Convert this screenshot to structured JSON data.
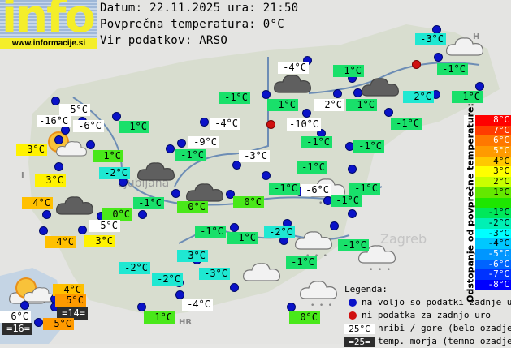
{
  "header": {
    "logo_text": "info",
    "logo_url": "www.informacije.si",
    "date_line": "Datum: 22.11.2025 ura: 21:50",
    "avg_line": "Povprečna temperatura: 0°C",
    "source_line": "Vir podatkov: ARSO"
  },
  "map_labels": {
    "city_ljubljana": "Ljubljana",
    "city_zagreb": "Zagreb",
    "country_hr": "HR",
    "country_h": "H",
    "country_i": "I"
  },
  "stations": [
    {
      "t": "-3°C",
      "s": "cyan"
    },
    {
      "t": "-4°C",
      "s": "white"
    },
    {
      "t": "-1°C",
      "s": "green"
    },
    {
      "t": "-1°C",
      "s": "green"
    },
    {
      "t": "-1°C",
      "s": "green"
    },
    {
      "t": "-1°C",
      "s": "green"
    },
    {
      "t": "-2°C",
      "s": "white"
    },
    {
      "t": "-1°C",
      "s": "green"
    },
    {
      "t": "-2°C",
      "s": "cyan"
    },
    {
      "t": "-1°C",
      "s": "green"
    },
    {
      "t": "-1°C",
      "s": "green"
    },
    {
      "t": "-10°C",
      "s": "white"
    },
    {
      "t": "-5°C",
      "s": "white"
    },
    {
      "t": "-16°C",
      "s": "white"
    },
    {
      "t": "-6°C",
      "s": "white"
    },
    {
      "t": "-1°C",
      "s": "green"
    },
    {
      "t": "-4°C",
      "s": "white"
    },
    {
      "t": "3°C",
      "s": "yellow"
    },
    {
      "t": "1°C",
      "s": "lime"
    },
    {
      "t": "-9°C",
      "s": "white"
    },
    {
      "t": "-1°C",
      "s": "green"
    },
    {
      "t": "-3°C",
      "s": "white"
    },
    {
      "t": "-1°C",
      "s": "green"
    },
    {
      "t": "-1°C",
      "s": "green"
    },
    {
      "t": "-1°C",
      "s": "green"
    },
    {
      "t": "-2°C",
      "s": "cyan"
    },
    {
      "t": "3°C",
      "s": "yellow"
    },
    {
      "t": "-1°C",
      "s": "green"
    },
    {
      "t": "-6°C",
      "s": "white"
    },
    {
      "t": "-1°C",
      "s": "green"
    },
    {
      "t": "4°C",
      "s": "orange"
    },
    {
      "t": "-1°C",
      "s": "green"
    },
    {
      "t": "0°C",
      "s": "lime"
    },
    {
      "t": "0°C",
      "s": "lime"
    },
    {
      "t": "-1°C",
      "s": "green"
    },
    {
      "t": "0°C",
      "s": "lime"
    },
    {
      "t": "-5°C",
      "s": "white"
    },
    {
      "t": "-1°C",
      "s": "green"
    },
    {
      "t": "-1°C",
      "s": "green"
    },
    {
      "t": "-2°C",
      "s": "cyan"
    },
    {
      "t": "-1°C",
      "s": "green"
    },
    {
      "t": "4°C",
      "s": "orange"
    },
    {
      "t": "3°C",
      "s": "yellow"
    },
    {
      "t": "-3°C",
      "s": "cyan"
    },
    {
      "t": "-1°C",
      "s": "green"
    },
    {
      "t": "-2°C",
      "s": "cyan"
    },
    {
      "t": "-2°C",
      "s": "cyan"
    },
    {
      "t": "-3°C",
      "s": "cyan"
    },
    {
      "t": "4°C",
      "s": "orange"
    },
    {
      "t": "5°C",
      "s": "orange2"
    },
    {
      "t": "=14=",
      "s": "dark"
    },
    {
      "t": "6°C",
      "s": "white"
    },
    {
      "t": "=16=",
      "s": "dark"
    },
    {
      "t": "5°C",
      "s": "orange2"
    },
    {
      "t": "-4°C",
      "s": "white"
    },
    {
      "t": "1°C",
      "s": "lime"
    },
    {
      "t": "0°C",
      "s": "lime"
    }
  ],
  "label_colors": {
    "white": "#ffffff",
    "green": "#19e06a",
    "lime": "#49e81a",
    "cyan": "#1fe8d2",
    "yellow": "#fff200",
    "orange": "#ffc000",
    "orange2": "#ff9a00",
    "dark": "#2d2d2d"
  },
  "scale": {
    "title": "Odstopanje od povprečne temperature:",
    "steps": [
      {
        "t": "8°C",
        "c": "#ff0000"
      },
      {
        "t": "7°C",
        "c": "#ff3c00"
      },
      {
        "t": "6°C",
        "c": "#ff7800"
      },
      {
        "t": "5°C",
        "c": "#ff9a00"
      },
      {
        "t": "4°C",
        "c": "#ffc800"
      },
      {
        "t": "3°C",
        "c": "#ffff00"
      },
      {
        "t": "2°C",
        "c": "#c8ff00"
      },
      {
        "t": "1°C",
        "c": "#64e800"
      },
      {
        "t": "",
        "c": "#1ee600"
      },
      {
        "t": "-1°C",
        "c": "#00e85a"
      },
      {
        "t": "-2°C",
        "c": "#00f0b4"
      },
      {
        "t": "-3°C",
        "c": "#00ffff"
      },
      {
        "t": "-4°C",
        "c": "#00c8ff"
      },
      {
        "t": "-5°C",
        "c": "#0096ff"
      },
      {
        "t": "-6°C",
        "c": "#0064ff"
      },
      {
        "t": "-7°C",
        "c": "#0032ff"
      },
      {
        "t": "-8°C",
        "c": "#0000ff"
      }
    ]
  },
  "legend": {
    "title": "Legenda:",
    "available": "na voljo so podatki zadnje ure",
    "missing": "ni podatka za zadnjo uro",
    "mountain_sample": "25°C",
    "mountain_text": "hribi / gore (belo ozadje)",
    "sea_sample": "=25=",
    "sea_text": "temp. morja (temno ozadje)",
    "dot_available_color": "#0a12c8",
    "dot_missing_color": "#d01010"
  }
}
